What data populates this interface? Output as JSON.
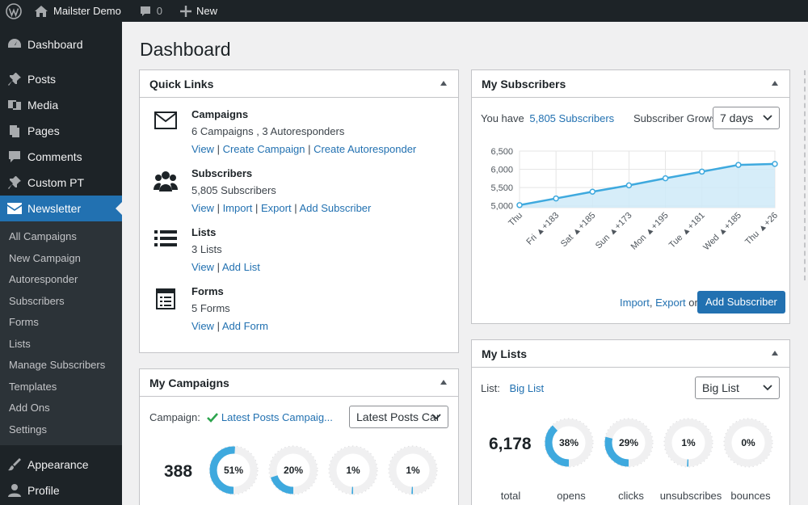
{
  "adminbar": {
    "site_name": "Mailster Demo",
    "comments_count": "0",
    "new_label": "New"
  },
  "sidebar": {
    "items": [
      {
        "label": "Dashboard",
        "icon": "dashboard-icon"
      },
      {
        "label": "Posts",
        "icon": "pin-icon"
      },
      {
        "label": "Media",
        "icon": "media-icon"
      },
      {
        "label": "Pages",
        "icon": "pages-icon"
      },
      {
        "label": "Comments",
        "icon": "comment-icon"
      },
      {
        "label": "Custom PT",
        "icon": "pin-icon"
      },
      {
        "label": "Newsletter",
        "icon": "envelope-icon"
      }
    ],
    "submenu": [
      "All Campaigns",
      "New Campaign",
      "Autoresponder",
      "Subscribers",
      "Forms",
      "Lists",
      "Manage Subscribers",
      "Templates",
      "Add Ons",
      "Settings"
    ],
    "bottom_items": [
      {
        "label": "Appearance",
        "icon": "brush-icon"
      },
      {
        "label": "Profile",
        "icon": "user-icon"
      }
    ]
  },
  "page": {
    "title": "Dashboard"
  },
  "quick_links": {
    "title": "Quick Links",
    "rows": [
      {
        "name": "Campaigns",
        "desc": "6 Campaigns , 3 Autoresponders",
        "links": [
          "View",
          "Create Campaign",
          "Create Autoresponder"
        ]
      },
      {
        "name": "Subscribers",
        "desc": "5,805 Subscribers",
        "links": [
          "View",
          "Import",
          "Export",
          "Add Subscriber"
        ]
      },
      {
        "name": "Lists",
        "desc": "3 Lists",
        "links": [
          "View",
          "Add List"
        ]
      },
      {
        "name": "Forms",
        "desc": "5 Forms",
        "links": [
          "View",
          "Add Form"
        ]
      }
    ]
  },
  "my_campaigns": {
    "title": "My Campaigns",
    "campaign_label": "Campaign:",
    "campaign_name": "Latest Posts Campaig...",
    "select_value": "Latest Posts Car",
    "total": "388",
    "gauges": [
      51,
      20,
      1,
      1
    ]
  },
  "my_subscribers": {
    "title": "My Subscribers",
    "you_have": "You have",
    "count_link": "5,805 Subscribers",
    "grows_label": "Subscriber Grows:",
    "range_value": "7 days",
    "import_link": "Import",
    "export_link": "Export",
    "or_text": "or",
    "add_button": "Add Subscriber"
  },
  "my_lists": {
    "title": "My Lists",
    "list_label": "List:",
    "list_link": "Big List",
    "select_value": "Big List",
    "total": "6,178",
    "stats": [
      {
        "label": "total"
      },
      {
        "label": "opens",
        "value": 38
      },
      {
        "label": "clicks",
        "value": 29
      },
      {
        "label": "unsubscribes",
        "value": 1
      },
      {
        "label": "bounces",
        "value": 0
      }
    ]
  },
  "chart_data": {
    "type": "area",
    "title": "",
    "categories": [
      "Thu",
      "Fri ▲+183",
      "Sat ▲+185",
      "Sun ▲+173",
      "Mon ▲+195",
      "Tue ▲+181",
      "Wed ▲+185",
      "Thu ▲+26"
    ],
    "values": [
      5020,
      5203,
      5388,
      5561,
      5756,
      5937,
      6122,
      6148
    ],
    "yticks": [
      "5,000",
      "5,500",
      "6,000",
      "6,500"
    ],
    "ylim": [
      4950,
      6500
    ],
    "colors": {
      "line": "#3ea9de",
      "fill": "#cfeaf8"
    }
  },
  "colors": {
    "accent": "#2271b1",
    "gauge": "#3ea9de",
    "gauge_track": "#f0f0f1"
  }
}
